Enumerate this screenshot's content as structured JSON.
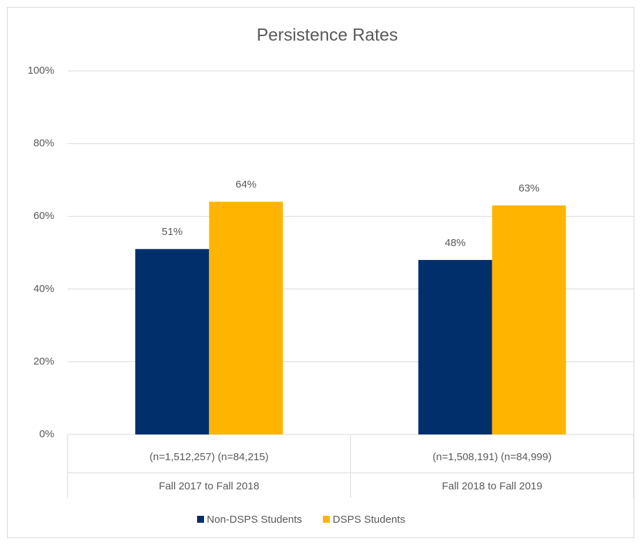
{
  "chart_data": {
    "type": "bar",
    "title": "Persistence Rates",
    "categories": [
      "Fall 2017 to Fall 2018",
      "Fall 2018 to Fall 2019"
    ],
    "sublabels": [
      "(n=1,512,257) (n=84,215)",
      "(n=1,508,191) (n=84,999)"
    ],
    "series": [
      {
        "name": "Non-DSPS Students",
        "color": "#002f6c",
        "values": [
          51,
          48
        ],
        "value_labels": [
          "51%",
          "48%"
        ]
      },
      {
        "name": "DSPS Students",
        "color": "#ffb500",
        "values": [
          64,
          63
        ],
        "value_labels": [
          "64%",
          "63%"
        ]
      }
    ],
    "ylim": [
      0,
      100
    ],
    "yticks": [
      {
        "value": 0,
        "label": "0%"
      },
      {
        "value": 20,
        "label": "20%"
      },
      {
        "value": 40,
        "label": "40%"
      },
      {
        "value": 60,
        "label": "60%"
      },
      {
        "value": 80,
        "label": "80%"
      },
      {
        "value": 100,
        "label": "100%"
      }
    ],
    "grid": true,
    "legend": "bottom"
  }
}
